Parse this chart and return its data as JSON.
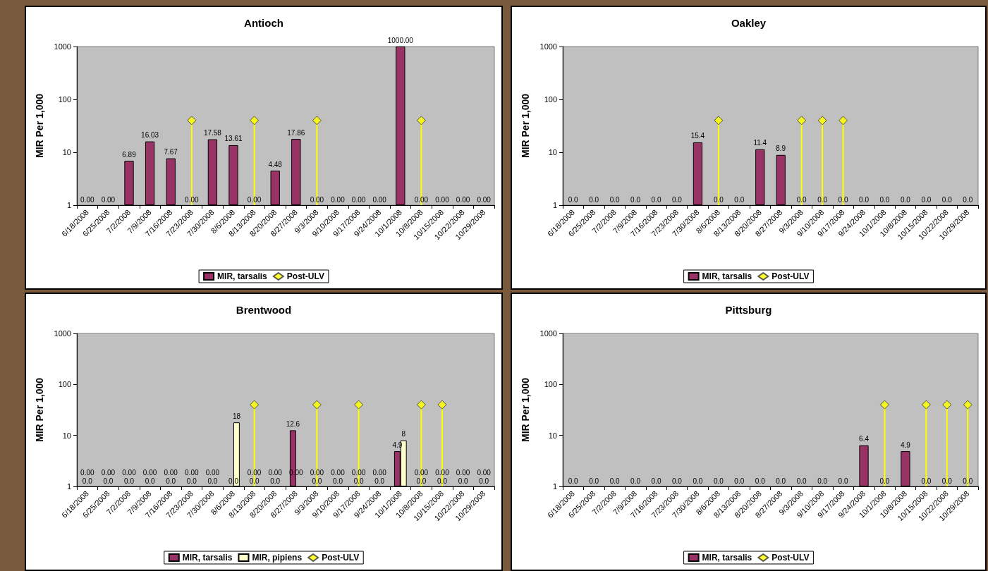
{
  "chart_data": [
    {
      "type": "bar",
      "title": "Antioch",
      "ylabel": "MIR Per 1,000",
      "log": true,
      "ylim": [
        1,
        1000
      ],
      "yticks": [
        1,
        10,
        100,
        1000
      ],
      "legend": "bottom",
      "marker": "diamond",
      "categories": [
        "6/18/2008",
        "6/25/2008",
        "7/2/2008",
        "7/9/2008",
        "7/16/2008",
        "7/23/2008",
        "7/30/2008",
        "8/6/2008",
        "8/13/2008",
        "8/20/2008",
        "8/27/2008",
        "9/3/2008",
        "9/10/2008",
        "9/17/2008",
        "9/24/2008",
        "10/1/2008",
        "10/8/2008",
        "10/15/2008",
        "10/22/2008",
        "10/29/2008"
      ],
      "series": [
        {
          "name": "MIR, tarsalis",
          "color": "#993366",
          "values": [
            null,
            null,
            6.89,
            16.03,
            7.67,
            null,
            17.58,
            13.61,
            null,
            4.48,
            17.86,
            null,
            null,
            null,
            null,
            1000,
            null,
            null,
            null,
            null
          ],
          "value_labels": [
            "0.00",
            "0.00",
            "6.89",
            "16.03",
            "7.67",
            "0.00",
            "17.58",
            "13.61",
            "0.00",
            "4.48",
            "17.86",
            "0.00",
            "0.00",
            "0.00",
            "0.00",
            "1000.00",
            "0.00",
            "0.00",
            "0.00",
            "0.00"
          ]
        },
        {
          "name": "Post-ULV",
          "type": "lollipop",
          "color": "#ffff00",
          "values": [
            null,
            null,
            null,
            null,
            null,
            40,
            null,
            null,
            40,
            null,
            null,
            40,
            null,
            null,
            null,
            null,
            40,
            null,
            null,
            null
          ]
        }
      ]
    },
    {
      "type": "bar",
      "title": "Oakley",
      "ylabel": "MIR Per 1,000",
      "log": true,
      "ylim": [
        1,
        1000
      ],
      "yticks": [
        1,
        10,
        100,
        1000
      ],
      "legend": "bottom",
      "marker": "diamond",
      "categories": [
        "6/18/2008",
        "6/25/2008",
        "7/2/2008",
        "7/9/2008",
        "7/16/2008",
        "7/23/2008",
        "7/30/2008",
        "8/6/2008",
        "8/13/2008",
        "8/20/2008",
        "8/27/2008",
        "9/3/2008",
        "9/10/2008",
        "9/17/2008",
        "9/24/2008",
        "10/1/2008",
        "10/8/2008",
        "10/15/2008",
        "10/22/2008",
        "10/29/2008"
      ],
      "series": [
        {
          "name": "MIR, tarsalis",
          "color": "#993366",
          "values": [
            null,
            null,
            null,
            null,
            null,
            null,
            15.4,
            null,
            null,
            11.4,
            8.9,
            null,
            null,
            null,
            null,
            null,
            null,
            null,
            null,
            null
          ],
          "value_labels": [
            "0.0",
            "0.0",
            "0.0",
            "0.0",
            "0.0",
            "0.0",
            "15.4",
            "0.0",
            "0.0",
            "11.4",
            "8.9",
            "0.0",
            "0.0",
            "0.0",
            "0.0",
            "0.0",
            "0.0",
            "0.0",
            "0.0",
            "0.0"
          ]
        },
        {
          "name": "Post-ULV",
          "type": "lollipop",
          "color": "#ffff00",
          "values": [
            null,
            null,
            null,
            null,
            null,
            null,
            null,
            40,
            null,
            null,
            null,
            40,
            40,
            40,
            null,
            null,
            null,
            null,
            null,
            null
          ]
        }
      ]
    },
    {
      "type": "bar",
      "title": "Brentwood",
      "ylabel": "MIR Per 1,000",
      "log": true,
      "ylim": [
        1,
        1000
      ],
      "yticks": [
        1,
        10,
        100,
        1000
      ],
      "legend": "bottom",
      "marker": "diamond",
      "categories": [
        "6/18/2008",
        "6/25/2008",
        "7/2/2008",
        "7/9/2008",
        "7/16/2008",
        "7/23/2008",
        "7/30/2008",
        "8/6/2008",
        "8/13/2008",
        "8/20/2008",
        "8/27/2008",
        "9/3/2008",
        "9/10/2008",
        "9/17/2008",
        "9/24/2008",
        "10/1/2008",
        "10/8/2008",
        "10/15/2008",
        "10/22/2008",
        "10/29/2008"
      ],
      "series": [
        {
          "name": "MIR, tarsalis",
          "color": "#993366",
          "values": [
            null,
            null,
            null,
            null,
            null,
            null,
            null,
            null,
            null,
            null,
            12.6,
            null,
            null,
            null,
            null,
            4.9,
            null,
            null,
            null,
            null
          ],
          "value_labels": [
            "0.0",
            "0.0",
            "0.0",
            "0.0",
            "0.0",
            "0.0",
            "0.0",
            "0.0",
            "0.0",
            "0.0",
            "12.6",
            "0.0",
            "0.0",
            "0.0",
            "0.0",
            "4.9",
            "0.0",
            "0.0",
            "0.0",
            "0.0"
          ]
        },
        {
          "name": "MIR, pipiens",
          "color": "#ffffcc",
          "values": [
            null,
            null,
            null,
            null,
            null,
            null,
            null,
            18,
            null,
            null,
            null,
            null,
            null,
            null,
            null,
            8,
            null,
            null,
            null,
            null
          ],
          "value_labels": [
            "0.00",
            "0.00",
            "0.00",
            "0.00",
            "0.00",
            "0.00",
            "0.00",
            "18",
            "0.00",
            "0.00",
            "0.00",
            "0.00",
            "0.00",
            "0.00",
            "0.00",
            "8",
            "0.00",
            "0.00",
            "0.00",
            "0.00"
          ]
        },
        {
          "name": "Post-ULV",
          "type": "lollipop",
          "color": "#ffff00",
          "values": [
            null,
            null,
            null,
            null,
            null,
            null,
            null,
            null,
            40,
            null,
            null,
            40,
            null,
            40,
            null,
            null,
            40,
            40,
            null,
            null
          ]
        }
      ]
    },
    {
      "type": "bar",
      "title": "Pittsburg",
      "ylabel": "MIR Per 1,000",
      "log": true,
      "ylim": [
        1,
        1000
      ],
      "yticks": [
        1,
        10,
        100,
        1000
      ],
      "legend": "bottom",
      "marker": "diamond",
      "categories": [
        "6/18/2008",
        "6/25/2008",
        "7/2/2008",
        "7/9/2008",
        "7/16/2008",
        "7/23/2008",
        "7/30/2008",
        "8/6/2008",
        "8/13/2008",
        "8/20/2008",
        "8/27/2008",
        "9/3/2008",
        "9/10/2008",
        "9/17/2008",
        "9/24/2008",
        "10/1/2008",
        "10/8/2008",
        "10/15/2008",
        "10/22/2008",
        "10/29/2008"
      ],
      "series": [
        {
          "name": "MIR, tarsalis",
          "color": "#993366",
          "values": [
            null,
            null,
            null,
            null,
            null,
            null,
            null,
            null,
            null,
            null,
            null,
            null,
            null,
            null,
            6.4,
            null,
            4.9,
            null,
            null,
            null
          ],
          "value_labels": [
            "0.0",
            "0.0",
            "0.0",
            "0.0",
            "0.0",
            "0.0",
            "0.0",
            "0.0",
            "0.0",
            "0.0",
            "0.0",
            "0.0",
            "0.0",
            "0.0",
            "6.4",
            "0.0",
            "4.9",
            "0.0",
            "0.0",
            "0.0"
          ]
        },
        {
          "name": "Post-ULV",
          "type": "lollipop",
          "color": "#ffff00",
          "values": [
            null,
            null,
            null,
            null,
            null,
            null,
            null,
            null,
            null,
            null,
            null,
            null,
            null,
            null,
            null,
            40,
            null,
            40,
            40,
            40
          ]
        }
      ]
    }
  ]
}
